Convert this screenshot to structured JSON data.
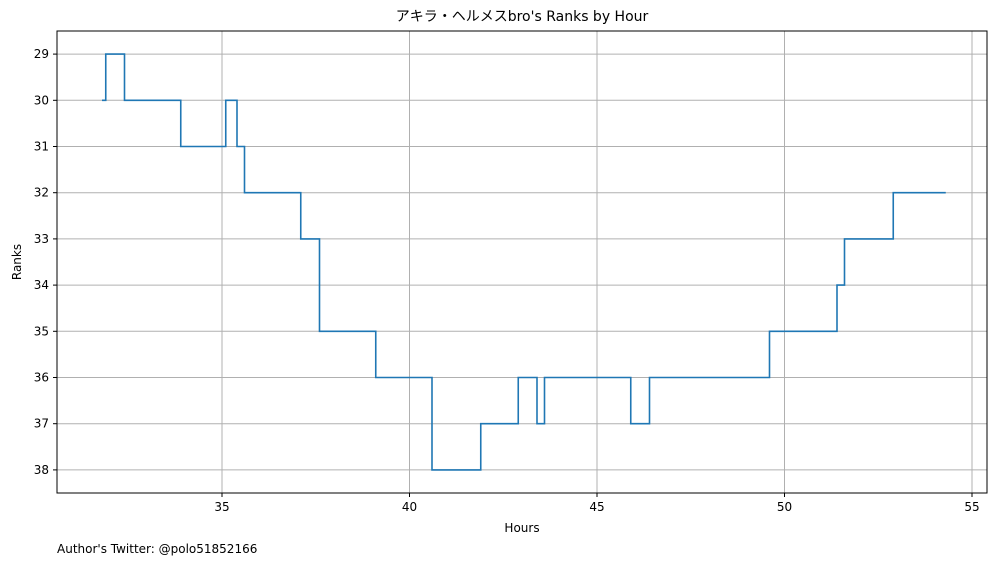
{
  "chart_data": {
    "type": "line",
    "step": true,
    "title": "アキラ・ヘルメスbro's Ranks by Hour",
    "xlabel": "Hours",
    "ylabel": "Ranks",
    "xlim": [
      30.6,
      55.4
    ],
    "ylim": [
      28.5,
      38.5
    ],
    "y_inverted": true,
    "grid": true,
    "x_ticks": [
      35,
      40,
      45,
      50,
      55
    ],
    "y_ticks": [
      29,
      30,
      31,
      32,
      33,
      34,
      35,
      36,
      37,
      38
    ],
    "series": [
      {
        "color": "#1f77b4",
        "points": [
          [
            31.8,
            30
          ],
          [
            31.9,
            29
          ],
          [
            32.4,
            30
          ],
          [
            33.9,
            31
          ],
          [
            35.1,
            30
          ],
          [
            35.4,
            31
          ],
          [
            35.6,
            32
          ],
          [
            37.1,
            33
          ],
          [
            37.6,
            35
          ],
          [
            39.1,
            36
          ],
          [
            40.6,
            38
          ],
          [
            41.9,
            37
          ],
          [
            42.9,
            36
          ],
          [
            43.4,
            37
          ],
          [
            43.6,
            36
          ],
          [
            45.9,
            37
          ],
          [
            46.4,
            36
          ],
          [
            49.6,
            35
          ],
          [
            51.4,
            34
          ],
          [
            51.6,
            33
          ],
          [
            52.9,
            32
          ],
          [
            54.3,
            32
          ]
        ]
      }
    ]
  },
  "footnote": "Author's Twitter: @polo51852166"
}
